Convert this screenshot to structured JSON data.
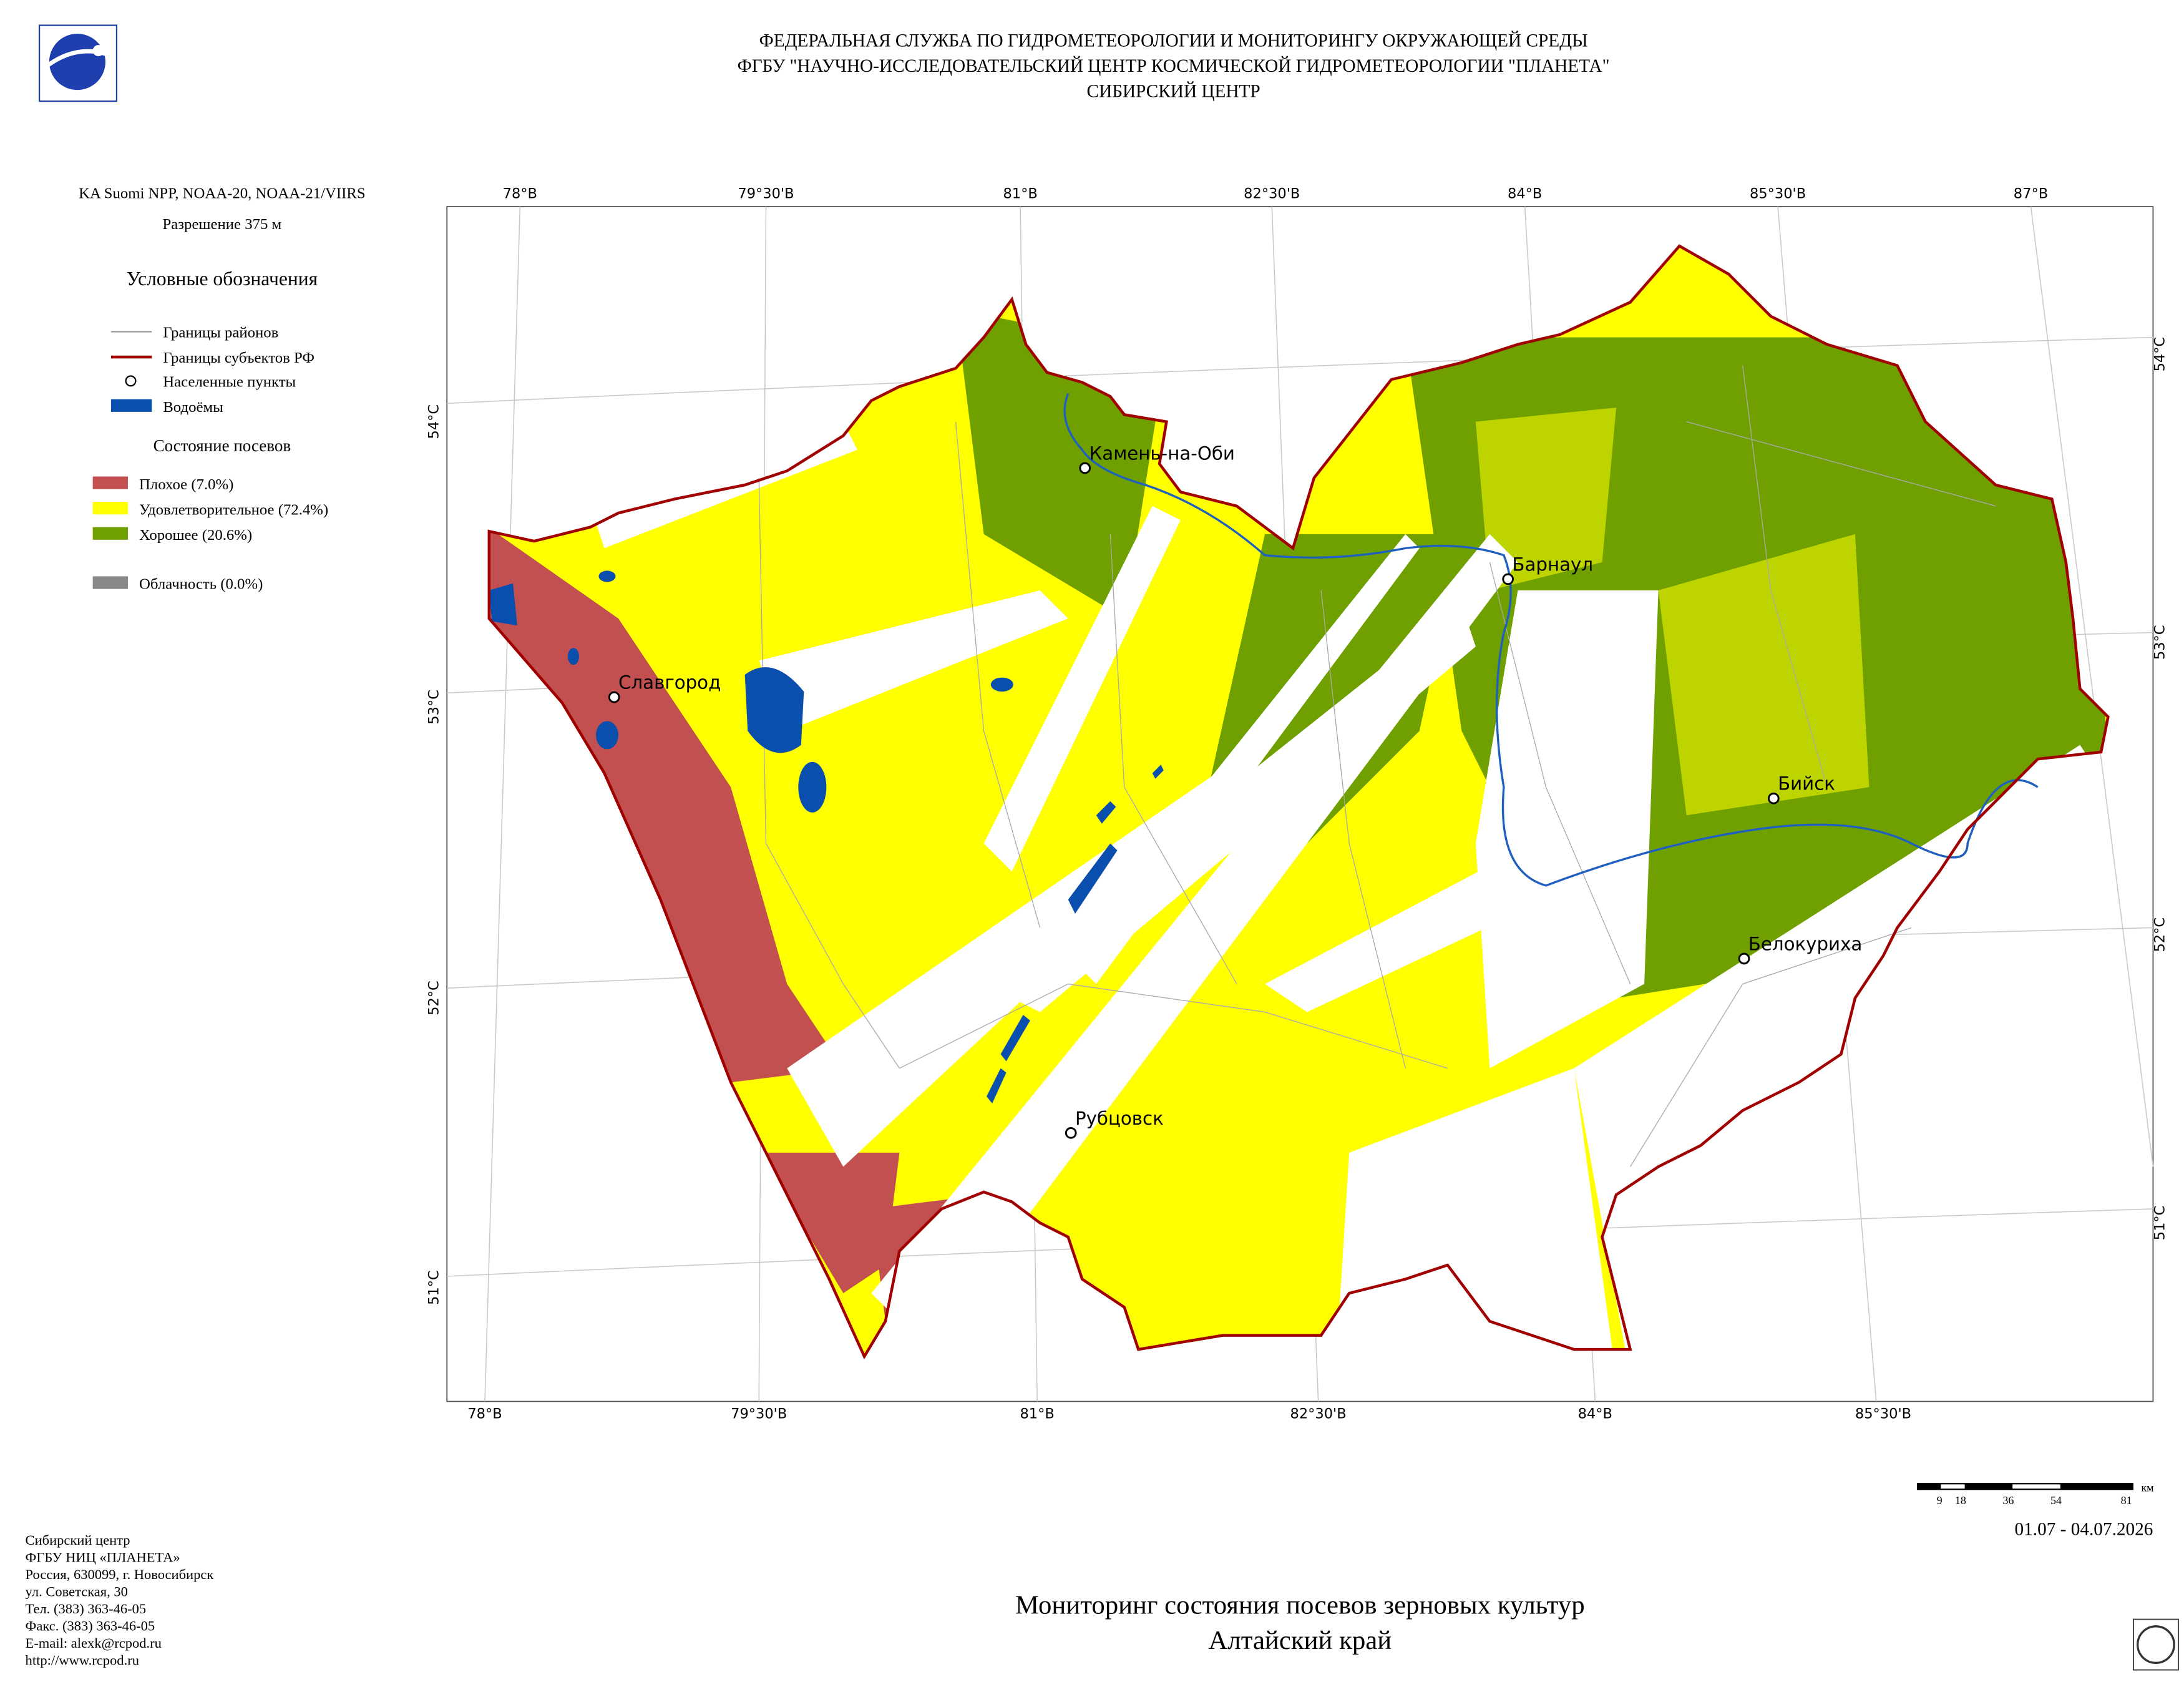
{
  "header": {
    "lines": [
      "ФЕДЕРАЛЬНАЯ СЛУЖБА ПО ГИДРОМЕТЕОРОЛОГИИ И МОНИТОРИНГУ ОКРУЖАЮЩЕЙ СРЕДЫ",
      "ФГБУ \"НАУЧНО-ИССЛЕДОВАТЕЛЬСКИЙ ЦЕНТР КОСМИЧЕСКОЙ ГИДРОМЕТЕОРОЛОГИИ \"ПЛАНЕТА\"",
      "СИБИРСКИЙ ЦЕНТР"
    ]
  },
  "sidebar": {
    "satellite": "KA Suomi NPP, NOAA-20, NOAA-21/VIIRS",
    "resolution": "Разрешение 375 м",
    "legend_title": "Условные обозначения",
    "legend": [
      "Границы районов",
      "Границы субъектов РФ",
      "Населенные пункты",
      "Водоёмы"
    ],
    "crops_title": "Состояние посевов",
    "crops": [
      "Плохое (7.0%)",
      "Удовлетворительное (72.4%)",
      "Хорошее (20.6%)"
    ],
    "cloud": "Облачность (0.0%)"
  },
  "map": {
    "top_labels": [
      "78°В",
      "79°30'В",
      "81°В",
      "82°30'В",
      "84°В",
      "85°30'В",
      "87°В"
    ],
    "bottom_labels": [
      "78°В",
      "79°30'В",
      "81°В",
      "82°30'В",
      "84°В",
      "85°30'В"
    ],
    "left_labels": [
      "54°С",
      "53°С",
      "52°С",
      "51°С"
    ],
    "right_labels": [
      "54°С",
      "53°С",
      "52°С",
      "51°С"
    ],
    "cities": [
      "Камень-на-Оби",
      "Барнаул",
      "Славгород",
      "Бийск",
      "Белокуриха",
      "Рубцовск"
    ]
  },
  "scale": {
    "ticks": [
      9,
      18,
      36,
      54,
      81
    ],
    "unit": "км"
  },
  "date": "01.07 - 04.07.2026",
  "footer": {
    "lines": [
      "Сибирский центр",
      "ФГБУ НИЦ «ПЛАНЕТА»",
      "Россия, 630099, г. Новосибирск",
      "ул. Советская, 30",
      "Тел. (383) 363-46-05",
      "Факс. (383) 363-46-05",
      "E-mail: alexk@rcpod.ru",
      "http://www.rcpod.ru"
    ]
  },
  "title": {
    "lines": [
      "Мониторинг состояния посевов зерновых культур",
      "Алтайский край"
    ]
  }
}
